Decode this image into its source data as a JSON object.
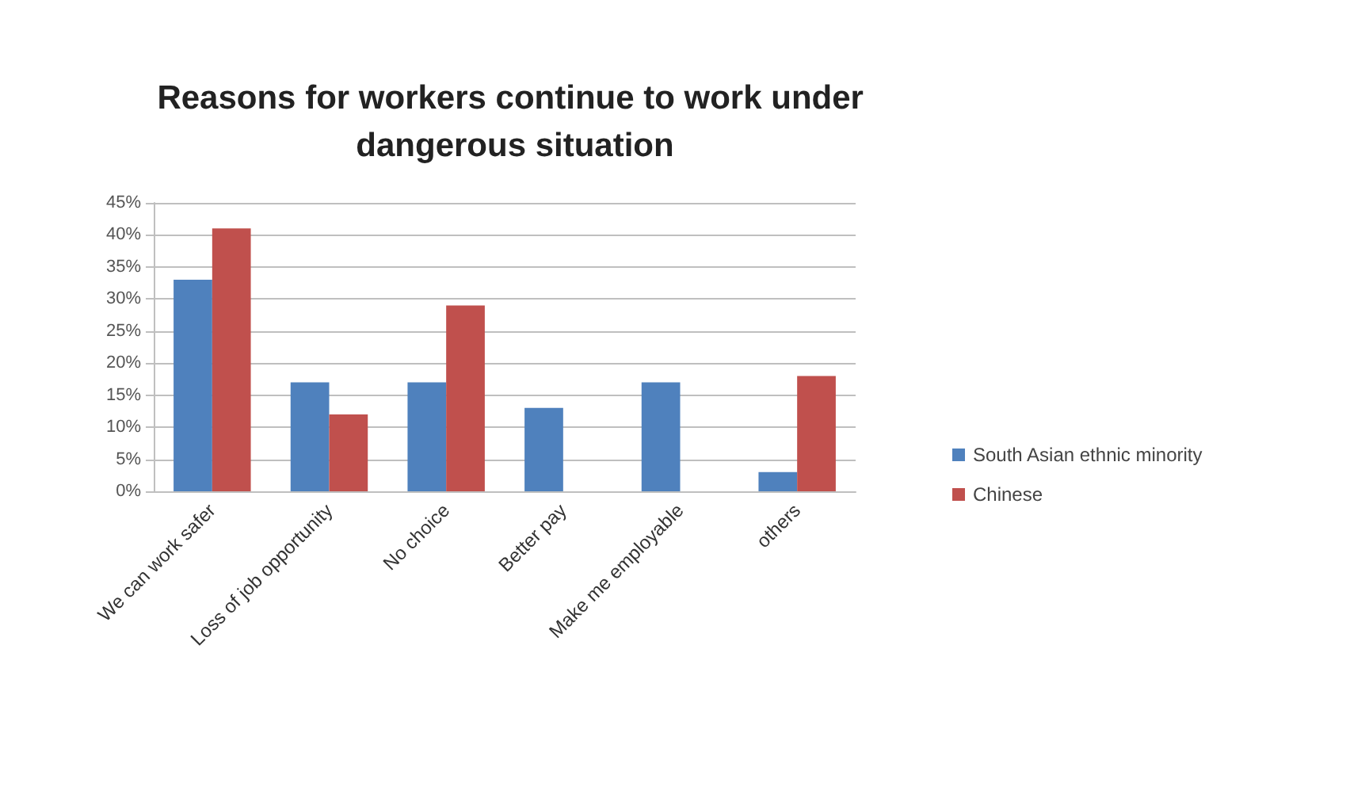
{
  "chart_data": {
    "type": "bar",
    "title": "Reasons for workers continue to work under dangerous situation",
    "categories": [
      "We can work safer",
      "Loss of job opportunity",
      "No choice",
      "Better pay",
      "Make me employable",
      "others"
    ],
    "series": [
      {
        "name": "South Asian ethnic minority",
        "color": "#4f81bd",
        "values": [
          33,
          17,
          17,
          13,
          17,
          3
        ]
      },
      {
        "name": "Chinese",
        "color": "#c0504d",
        "values": [
          41,
          12,
          29,
          0,
          0,
          18
        ]
      }
    ],
    "ylim": [
      0,
      45
    ],
    "yticks": [
      {
        "value": 0,
        "label": "0%"
      },
      {
        "value": 5,
        "label": "5%"
      },
      {
        "value": 10,
        "label": "10%"
      },
      {
        "value": 15,
        "label": "15%"
      },
      {
        "value": 20,
        "label": "20%"
      },
      {
        "value": 25,
        "label": "25%"
      },
      {
        "value": 30,
        "label": "30%"
      },
      {
        "value": 35,
        "label": "35%"
      },
      {
        "value": 40,
        "label": "40%"
      },
      {
        "value": 45,
        "label": "45%"
      }
    ],
    "grid": "y",
    "legend": "right"
  }
}
